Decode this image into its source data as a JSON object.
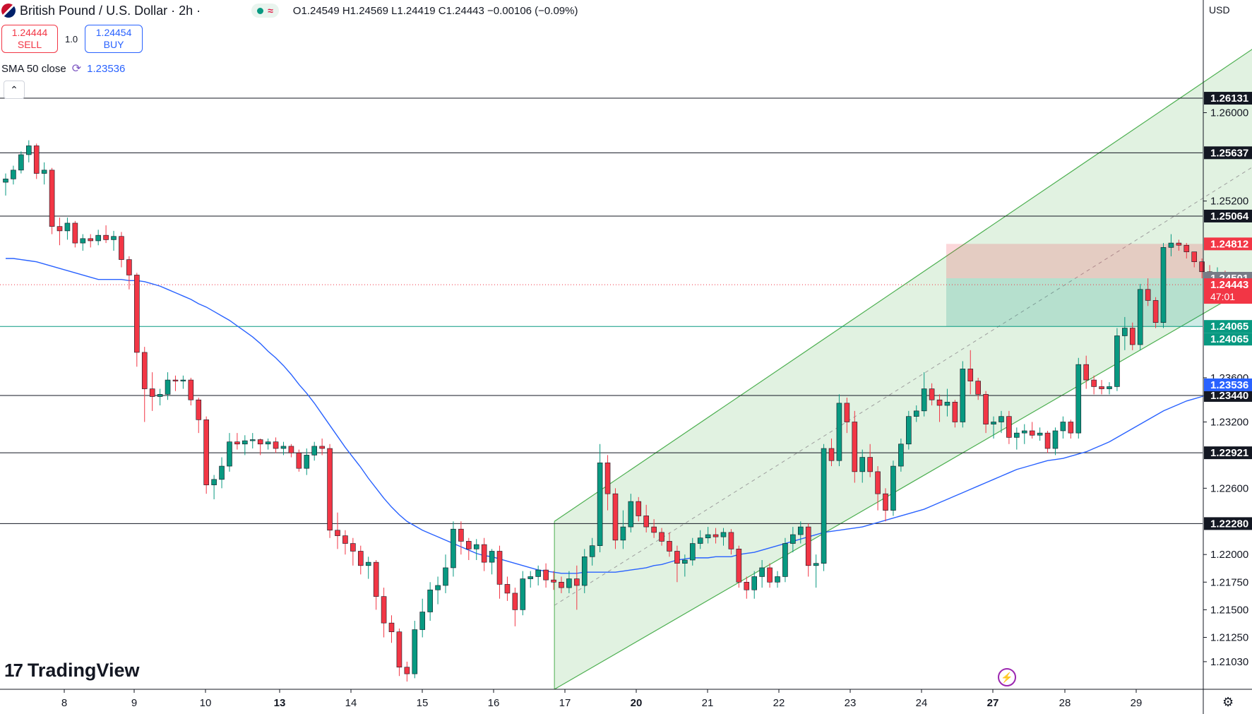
{
  "header": {
    "symbol": "British Pound / U.S. Dollar · 2h ·",
    "pill_icon": "≈",
    "ohlc": "O1.24549 H1.24569 L1.24419 C1.24443 −0.00106 (−0.09%)"
  },
  "trade": {
    "sell_price": "1.24444",
    "sell_label": "SELL",
    "qty": "1.0",
    "buy_price": "1.24454",
    "buy_label": "BUY"
  },
  "indicator": {
    "label": "SMA 50 close",
    "value": "1.23536"
  },
  "collapse_icon": "⌃",
  "logo": {
    "mark": "17",
    "text": "TradingView"
  },
  "currency": "USD",
  "bolt_icon": "⚡",
  "settings_icon": "⚙",
  "chart_data": {
    "type": "candlestick",
    "symbol": "GBPUSD",
    "interval": "2h",
    "x_ticks": [
      "8",
      "9",
      "10",
      "13",
      "14",
      "15",
      "16",
      "17",
      "20",
      "21",
      "22",
      "23",
      "24",
      "27",
      "28",
      "29"
    ],
    "y_ticks": [
      "1.26000",
      "1.25200",
      "1.23600",
      "1.23200",
      "1.22600",
      "1.22000",
      "1.21750",
      "1.21500",
      "1.21250",
      "1.21030"
    ],
    "ylim": [
      1.2078,
      1.2702
    ],
    "horizontal_levels": [
      {
        "value": 1.26131,
        "label": "1.26131",
        "color": "#131722"
      },
      {
        "value": 1.25637,
        "label": "1.25637",
        "color": "#131722"
      },
      {
        "value": 1.25064,
        "label": "1.25064",
        "color": "#131722"
      },
      {
        "value": 1.2344,
        "label": "1.23440",
        "color": "#131722"
      },
      {
        "value": 1.22921,
        "label": "1.22921",
        "color": "#131722"
      },
      {
        "value": 1.2228,
        "label": "1.22280",
        "color": "#131722"
      }
    ],
    "price_tags": [
      {
        "value": 1.24812,
        "label": "1.24812",
        "color": "#f23645"
      },
      {
        "value": 1.24501,
        "label": "1.24501",
        "color": "#787b86"
      },
      {
        "value": 1.24443,
        "label": "1.24443",
        "sub": "47:01",
        "color": "#f23645"
      },
      {
        "value": 1.24065,
        "label": "1.24065",
        "color": "#089981"
      },
      {
        "value": 1.24065,
        "label": "1.24065",
        "color": "#089981",
        "stacked": true
      },
      {
        "value": 1.23536,
        "label": "1.23536",
        "color": "#2962ff"
      }
    ],
    "last_price": 1.24443,
    "position": {
      "entry": 1.24501,
      "stop": 1.24812,
      "target": 1.24065
    },
    "channel": {
      "start_index": 71.1,
      "end_index": 166.5,
      "upper_start": 1.223,
      "upper_end": 1.2681,
      "lower_start": 1.2078,
      "lower_end": 1.2464
    },
    "sma50": [
      1.2468,
      1.2468,
      1.2467,
      1.2466,
      1.2465,
      1.2463,
      1.2461,
      1.2459,
      1.2457,
      1.2455,
      1.2453,
      1.2451,
      1.2449,
      1.2449,
      1.2449,
      1.2449,
      1.2448,
      1.2448,
      1.2447,
      1.2445,
      1.2443,
      1.244,
      1.2437,
      1.2434,
      1.2431,
      1.2427,
      1.2424,
      1.242,
      1.2416,
      1.2412,
      1.2407,
      1.2402,
      1.2397,
      1.2391,
      1.2384,
      1.2378,
      1.2371,
      1.2363,
      1.2354,
      1.2346,
      1.2337,
      1.2327,
      1.2317,
      1.2307,
      1.2297,
      1.2288,
      1.2279,
      1.2269,
      1.226,
      1.2251,
      1.2243,
      1.2236,
      1.223,
      1.2226,
      1.2222,
      1.2219,
      1.2216,
      1.2213,
      1.221,
      1.2207,
      1.2204,
      1.2201,
      1.2199,
      1.2198,
      1.2196,
      1.2194,
      1.2192,
      1.219,
      1.2188,
      1.2186,
      1.2185,
      1.2184,
      1.2183,
      1.2183,
      1.2183,
      1.2184,
      1.2184,
      1.2184,
      1.2184,
      1.2184,
      1.2185,
      1.2186,
      1.2187,
      1.2188,
      1.219,
      1.2191,
      1.2193,
      1.2195,
      1.2196,
      1.2197,
      1.2197,
      1.2197,
      1.2198,
      1.2198,
      1.2198,
      1.22,
      1.2201,
      1.2202,
      1.2204,
      1.2206,
      1.2208,
      1.221,
      1.2212,
      1.2214,
      1.2216,
      1.2218,
      1.222,
      1.2221,
      1.2222,
      1.2223,
      1.2224,
      1.2225,
      1.2227,
      1.2229,
      1.2231,
      1.2233,
      1.2235,
      1.2237,
      1.2239,
      1.2241,
      1.2244,
      1.2247,
      1.225,
      1.2253,
      1.2256,
      1.2259,
      1.2262,
      1.2265,
      1.2268,
      1.2271,
      1.2274,
      1.2277,
      1.2279,
      1.2281,
      1.2283,
      1.2285,
      1.2286,
      1.2287,
      1.2289,
      1.2291,
      1.2293,
      1.2296,
      1.2299,
      1.2302,
      1.2306,
      1.231,
      1.2314,
      1.2318,
      1.2322,
      1.2326,
      1.233,
      1.2333,
      1.2336,
      1.2339,
      1.2341,
      1.2343,
      1.2346,
      1.2349,
      1.2352,
      1.2354
    ],
    "candles": [
      [
        1.2537,
        1.2545,
        1.2525,
        1.254
      ],
      [
        1.254,
        1.2552,
        1.2535,
        1.2548
      ],
      [
        1.2548,
        1.2565,
        1.2545,
        1.2562
      ],
      [
        1.2562,
        1.2575,
        1.2555,
        1.257
      ],
      [
        1.257,
        1.2572,
        1.254,
        1.2545
      ],
      [
        1.2545,
        1.2555,
        1.2535,
        1.2548
      ],
      [
        1.2548,
        1.255,
        1.249,
        1.2497
      ],
      [
        1.2497,
        1.2505,
        1.248,
        1.2493
      ],
      [
        1.2493,
        1.2505,
        1.2485,
        1.25
      ],
      [
        1.25,
        1.2502,
        1.2478,
        1.2482
      ],
      [
        1.2482,
        1.249,
        1.2475,
        1.2486
      ],
      [
        1.2486,
        1.249,
        1.2478,
        1.2484
      ],
      [
        1.2484,
        1.2494,
        1.248,
        1.2489
      ],
      [
        1.2489,
        1.2498,
        1.2482,
        1.2485
      ],
      [
        1.2485,
        1.2493,
        1.2475,
        1.2488
      ],
      [
        1.2488,
        1.2492,
        1.246,
        1.2467
      ],
      [
        1.2467,
        1.247,
        1.244,
        1.2453
      ],
      [
        1.2453,
        1.2455,
        1.237,
        1.2383
      ],
      [
        1.2383,
        1.2388,
        1.232,
        1.235
      ],
      [
        1.235,
        1.2365,
        1.233,
        1.2343
      ],
      [
        1.2343,
        1.235,
        1.2335,
        1.2345
      ],
      [
        1.2345,
        1.2365,
        1.234,
        1.2358
      ],
      [
        1.2358,
        1.2362,
        1.2348,
        1.2357
      ],
      [
        1.2357,
        1.2362,
        1.235,
        1.2358
      ],
      [
        1.2358,
        1.236,
        1.2335,
        1.234
      ],
      [
        1.234,
        1.2342,
        1.231,
        1.2322
      ],
      [
        1.2322,
        1.2325,
        1.2255,
        1.2263
      ],
      [
        1.2263,
        1.2272,
        1.225,
        1.2268
      ],
      [
        1.2268,
        1.2288,
        1.226,
        1.228
      ],
      [
        1.228,
        1.231,
        1.2275,
        1.2302
      ],
      [
        1.2302,
        1.231,
        1.2295,
        1.23
      ],
      [
        1.23,
        1.2308,
        1.229,
        1.2303
      ],
      [
        1.2303,
        1.231,
        1.2296,
        1.2304
      ],
      [
        1.2304,
        1.2305,
        1.229,
        1.23
      ],
      [
        1.23,
        1.2305,
        1.2295,
        1.2302
      ],
      [
        1.2302,
        1.2306,
        1.2292,
        1.2296
      ],
      [
        1.2296,
        1.2302,
        1.229,
        1.2298
      ],
      [
        1.2298,
        1.23,
        1.2288,
        1.2292
      ],
      [
        1.2292,
        1.2295,
        1.2275,
        1.2278
      ],
      [
        1.2278,
        1.2296,
        1.2272,
        1.229
      ],
      [
        1.229,
        1.2302,
        1.2285,
        1.2298
      ],
      [
        1.2298,
        1.2305,
        1.229,
        1.2296
      ],
      [
        1.2296,
        1.23,
        1.2215,
        1.2222
      ],
      [
        1.2222,
        1.2238,
        1.2205,
        1.2217
      ],
      [
        1.2217,
        1.2222,
        1.22,
        1.221
      ],
      [
        1.221,
        1.2215,
        1.219,
        1.2203
      ],
      [
        1.2203,
        1.2208,
        1.2182,
        1.219
      ],
      [
        1.219,
        1.2198,
        1.2178,
        1.2193
      ],
      [
        1.2193,
        1.2195,
        1.215,
        1.2162
      ],
      [
        1.2162,
        1.217,
        1.2125,
        1.2138
      ],
      [
        1.2138,
        1.2145,
        1.212,
        1.213
      ],
      [
        1.213,
        1.2133,
        1.209,
        1.2098
      ],
      [
        1.2098,
        1.2103,
        1.2085,
        1.2092
      ],
      [
        1.2092,
        1.214,
        1.2088,
        1.2132
      ],
      [
        1.2132,
        1.216,
        1.2125,
        1.2148
      ],
      [
        1.2148,
        1.2175,
        1.214,
        1.2168
      ],
      [
        1.2168,
        1.218,
        1.2155,
        1.2172
      ],
      [
        1.2172,
        1.22,
        1.2165,
        1.2188
      ],
      [
        1.2188,
        1.223,
        1.218,
        1.2223
      ],
      [
        1.2223,
        1.223,
        1.22,
        1.2212
      ],
      [
        1.2212,
        1.2215,
        1.2195,
        1.2205
      ],
      [
        1.2205,
        1.2214,
        1.2195,
        1.2209
      ],
      [
        1.2209,
        1.2215,
        1.2185,
        1.2193
      ],
      [
        1.2193,
        1.2205,
        1.2182,
        1.2203
      ],
      [
        1.2203,
        1.2208,
        1.216,
        1.2173
      ],
      [
        1.2173,
        1.218,
        1.2158,
        1.2165
      ],
      [
        1.2165,
        1.217,
        1.2135,
        1.215
      ],
      [
        1.215,
        1.2185,
        1.2145,
        1.2178
      ],
      [
        1.2178,
        1.2185,
        1.217,
        1.218
      ],
      [
        1.218,
        1.219,
        1.2172,
        1.2186
      ],
      [
        1.2186,
        1.2192,
        1.217,
        1.2177
      ],
      [
        1.2177,
        1.2185,
        1.2168,
        1.2175
      ],
      [
        1.2175,
        1.218,
        1.2165,
        1.217
      ],
      [
        1.217,
        1.2185,
        1.2165,
        1.2178
      ],
      [
        1.2178,
        1.219,
        1.215,
        1.2172
      ],
      [
        1.2172,
        1.2205,
        1.2165,
        1.2198
      ],
      [
        1.2198,
        1.2215,
        1.219,
        1.2208
      ],
      [
        1.2208,
        1.23,
        1.2202,
        1.2283
      ],
      [
        1.2283,
        1.229,
        1.224,
        1.2255
      ],
      [
        1.2255,
        1.226,
        1.2205,
        1.2213
      ],
      [
        1.2213,
        1.224,
        1.2205,
        1.2225
      ],
      [
        1.2225,
        1.2255,
        1.222,
        1.2248
      ],
      [
        1.2248,
        1.2252,
        1.223,
        1.2235
      ],
      [
        1.2235,
        1.2245,
        1.222,
        1.2225
      ],
      [
        1.2225,
        1.2232,
        1.2215,
        1.222
      ],
      [
        1.222,
        1.2224,
        1.2208,
        1.2212
      ],
      [
        1.2212,
        1.222,
        1.2198,
        1.2203
      ],
      [
        1.2203,
        1.2208,
        1.2175,
        1.2192
      ],
      [
        1.2192,
        1.22,
        1.218,
        1.2195
      ],
      [
        1.2195,
        1.2215,
        1.219,
        1.221
      ],
      [
        1.221,
        1.2222,
        1.2205,
        1.2215
      ],
      [
        1.2215,
        1.2225,
        1.221,
        1.2218
      ],
      [
        1.2218,
        1.2224,
        1.221,
        1.2216
      ],
      [
        1.2216,
        1.2224,
        1.2208,
        1.222
      ],
      [
        1.222,
        1.2223,
        1.22,
        1.2205
      ],
      [
        1.2205,
        1.2208,
        1.217,
        1.2175
      ],
      [
        1.2175,
        1.218,
        1.216,
        1.2168
      ],
      [
        1.2168,
        1.2185,
        1.216,
        1.218
      ],
      [
        1.218,
        1.2195,
        1.217,
        1.2188
      ],
      [
        1.2188,
        1.2192,
        1.217,
        1.2175
      ],
      [
        1.2175,
        1.2185,
        1.217,
        1.218
      ],
      [
        1.218,
        1.2215,
        1.2175,
        1.221
      ],
      [
        1.221,
        1.2225,
        1.2202,
        1.2218
      ],
      [
        1.2218,
        1.223,
        1.221,
        1.2225
      ],
      [
        1.2225,
        1.2228,
        1.218,
        1.219
      ],
      [
        1.219,
        1.22,
        1.217,
        1.2192
      ],
      [
        1.2192,
        1.23,
        1.2185,
        1.2296
      ],
      [
        1.2296,
        1.2305,
        1.228,
        1.2285
      ],
      [
        1.2285,
        1.2345,
        1.228,
        1.2337
      ],
      [
        1.2337,
        1.2342,
        1.231,
        1.232
      ],
      [
        1.232,
        1.233,
        1.2265,
        1.2275
      ],
      [
        1.2275,
        1.2295,
        1.2265,
        1.2288
      ],
      [
        1.2288,
        1.23,
        1.227,
        1.2275
      ],
      [
        1.2275,
        1.228,
        1.224,
        1.2255
      ],
      [
        1.2255,
        1.226,
        1.223,
        1.224
      ],
      [
        1.224,
        1.2285,
        1.2235,
        1.228
      ],
      [
        1.228,
        1.2305,
        1.2275,
        1.23
      ],
      [
        1.23,
        1.233,
        1.2295,
        1.2325
      ],
      [
        1.2325,
        1.2335,
        1.232,
        1.233
      ],
      [
        1.233,
        1.2365,
        1.2325,
        1.235
      ],
      [
        1.235,
        1.2355,
        1.2335,
        1.234
      ],
      [
        1.234,
        1.2345,
        1.232,
        1.2335
      ],
      [
        1.2335,
        1.235,
        1.2325,
        1.2338
      ],
      [
        1.2338,
        1.234,
        1.2315,
        1.232
      ],
      [
        1.232,
        1.2375,
        1.2315,
        1.2368
      ],
      [
        1.2368,
        1.2385,
        1.2345,
        1.2357
      ],
      [
        1.2357,
        1.236,
        1.234,
        1.2345
      ],
      [
        1.2345,
        1.2348,
        1.231,
        1.2318
      ],
      [
        1.2318,
        1.2325,
        1.2305,
        1.232
      ],
      [
        1.232,
        1.233,
        1.231,
        1.2325
      ],
      [
        1.2325,
        1.233,
        1.23,
        1.2306
      ],
      [
        1.2306,
        1.2315,
        1.2295,
        1.231
      ],
      [
        1.231,
        1.2318,
        1.23,
        1.2312
      ],
      [
        1.2312,
        1.232,
        1.2305,
        1.2308
      ],
      [
        1.2308,
        1.2315,
        1.2303,
        1.231
      ],
      [
        1.231,
        1.2312,
        1.2292,
        1.2296
      ],
      [
        1.2296,
        1.2315,
        1.229,
        1.2312
      ],
      [
        1.2312,
        1.2325,
        1.2305,
        1.232
      ],
      [
        1.232,
        1.2322,
        1.2305,
        1.231
      ],
      [
        1.231,
        1.2378,
        1.2305,
        1.2372
      ],
      [
        1.2372,
        1.238,
        1.235,
        1.2358
      ],
      [
        1.2358,
        1.2362,
        1.2345,
        1.2352
      ],
      [
        1.2352,
        1.2358,
        1.2345,
        1.235
      ],
      [
        1.235,
        1.2356,
        1.2345,
        1.2352
      ],
      [
        1.2352,
        1.2405,
        1.2348,
        1.2398
      ],
      [
        1.2398,
        1.2415,
        1.2385,
        1.2405
      ],
      [
        1.2405,
        1.241,
        1.2385,
        1.239
      ],
      [
        1.239,
        1.2445,
        1.2385,
        1.244
      ],
      [
        1.244,
        1.245,
        1.2425,
        1.243
      ],
      [
        1.243,
        1.2433,
        1.2405,
        1.241
      ],
      [
        1.241,
        1.2482,
        1.2405,
        1.2478
      ],
      [
        1.2478,
        1.249,
        1.247,
        1.2482
      ],
      [
        1.2482,
        1.2485,
        1.2475,
        1.248
      ],
      [
        1.248,
        1.2482,
        1.2468,
        1.2474
      ],
      [
        1.2474,
        1.2474,
        1.246,
        1.2465
      ],
      [
        1.2465,
        1.2468,
        1.245,
        1.2456
      ],
      [
        1.2456,
        1.2462,
        1.2445,
        1.245
      ],
      [
        1.245,
        1.246,
        1.2446,
        1.2455
      ],
      [
        1.2455,
        1.2457,
        1.2442,
        1.2444
      ]
    ]
  }
}
